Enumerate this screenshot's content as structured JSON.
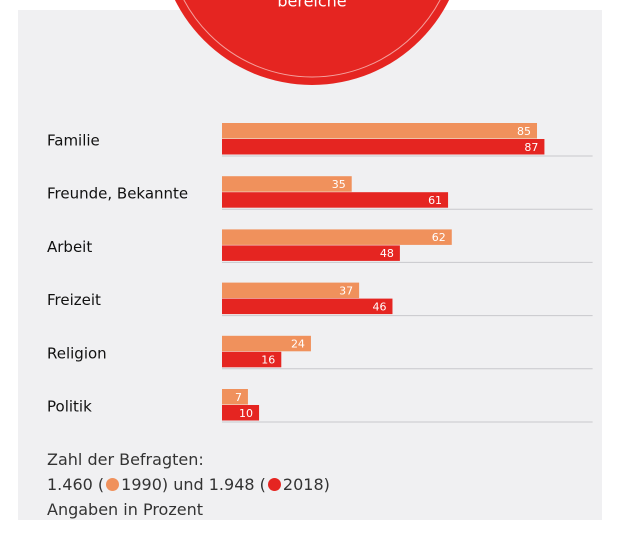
{
  "chart_data": {
    "type": "barh",
    "title": "bereiche",
    "categories": [
      "Familie",
      "Freunde, Bekannte",
      "Arbeit",
      "Freizeit",
      "Religion",
      "Politik"
    ],
    "series": [
      {
        "name": "1990",
        "color": "#f0915c",
        "sample": "1.460",
        "values": [
          85,
          35,
          62,
          37,
          24,
          7
        ]
      },
      {
        "name": "2018",
        "color": "#e52521",
        "sample": "1.948",
        "values": [
          87,
          61,
          48,
          46,
          16,
          10
        ]
      }
    ],
    "xlim": [
      0,
      100
    ],
    "note_title": "Zahl der Befragten:",
    "brackets": [
      "(",
      ")"
    ],
    "legend_joiner": "und",
    "note": "Angaben in Prozent"
  }
}
